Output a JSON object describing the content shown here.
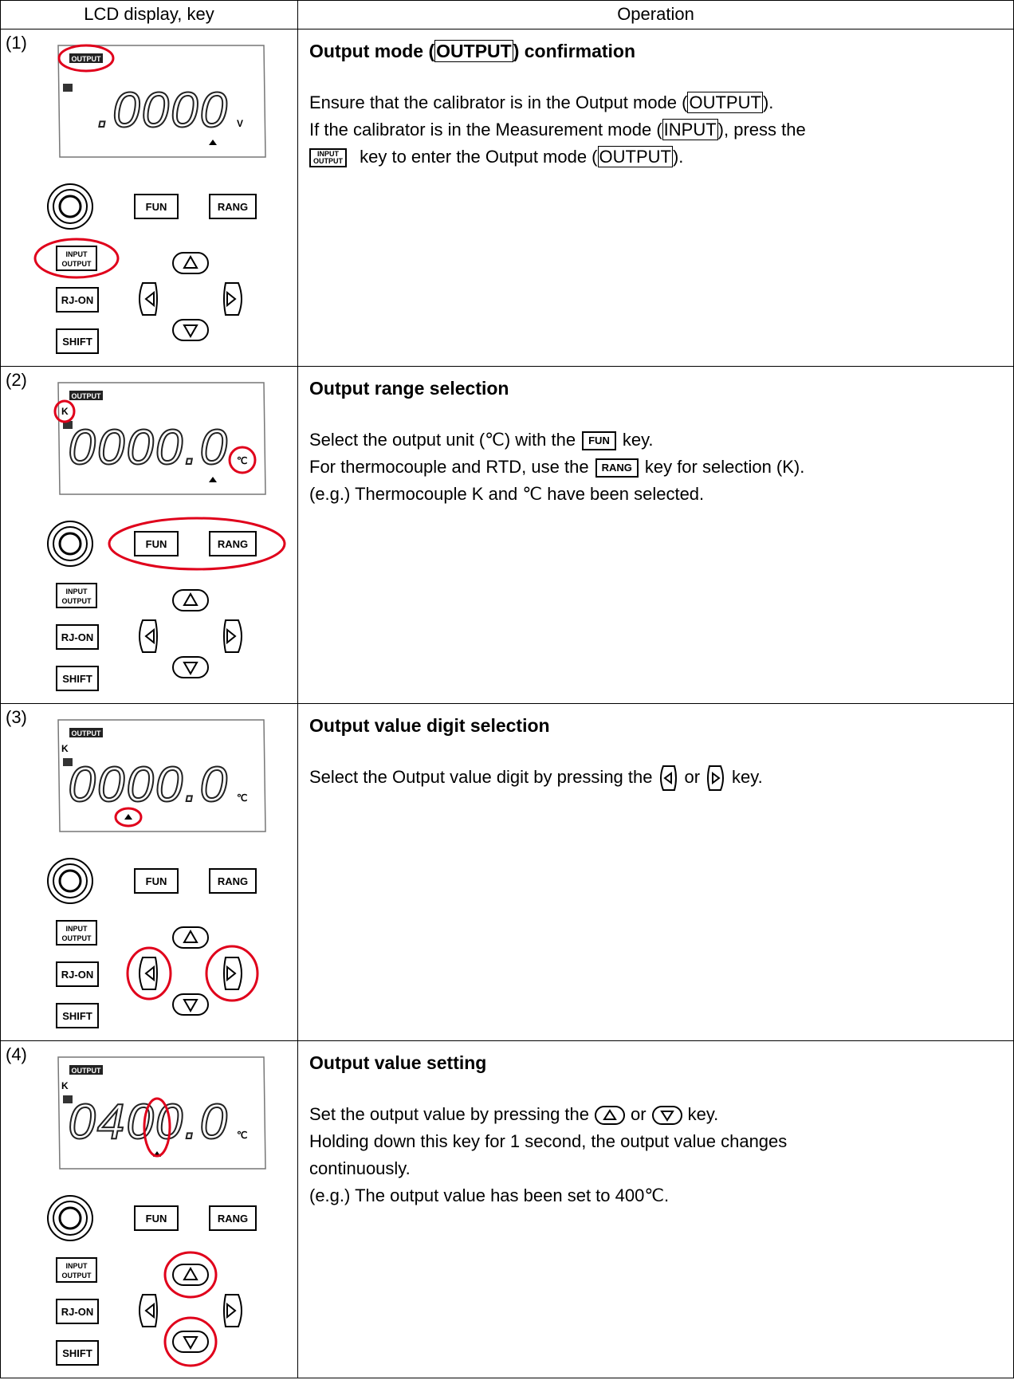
{
  "header": {
    "col1": "LCD display, key",
    "col2": "Operation"
  },
  "keys": {
    "fun": "FUN",
    "rang": "RANG",
    "rj": "RJ-ON",
    "shift": "SHIFT",
    "input": "INPUT",
    "output": "OUTPUT"
  },
  "rows": [
    {
      "label": "(1)",
      "lcd": {
        "mode": "OUTPUT",
        "value": ".0000",
        "unit": "V"
      },
      "title": [
        "Output mode (",
        "OUTPUT",
        ") confirmation"
      ],
      "lines": [
        [
          "Ensure that the calibrator is in the Output mode (",
          "OUTPUT",
          ")."
        ],
        [
          "If the calibrator is in the Measurement mode (",
          "INPUT",
          "), press the"
        ],
        [
          "key to enter the Output mode (",
          "OUTPUT",
          ")."
        ]
      ]
    },
    {
      "label": "(2)",
      "lcd": {
        "mode": "OUTPUT",
        "sensor": "K",
        "value": "0000.0",
        "unit": "℃"
      },
      "title": "Output range selection",
      "lines": [
        [
          "Select the output unit (℃) with the",
          "key."
        ],
        [
          "For thermocouple and RTD, use the",
          "key for selection (K)."
        ],
        [
          "(e.g.) Thermocouple K and ℃ have been selected."
        ]
      ]
    },
    {
      "label": "(3)",
      "lcd": {
        "mode": "OUTPUT",
        "sensor": "K",
        "value": "0000.0",
        "unit": "℃"
      },
      "title": "Output value digit selection",
      "lines": [
        [
          "Select the Output value digit by pressing the",
          "or",
          "key."
        ]
      ]
    },
    {
      "label": "(4)",
      "lcd": {
        "mode": "OUTPUT",
        "sensor": "K",
        "value": "0400.0",
        "unit": "℃"
      },
      "title": "Output value setting",
      "lines": [
        [
          "Set the output value by pressing the",
          "or",
          "key."
        ],
        [
          "Holding down this key for 1 second, the output value changes"
        ],
        [
          "continuously."
        ],
        [
          "(e.g.) The output value has been set to 400℃."
        ]
      ]
    }
  ]
}
